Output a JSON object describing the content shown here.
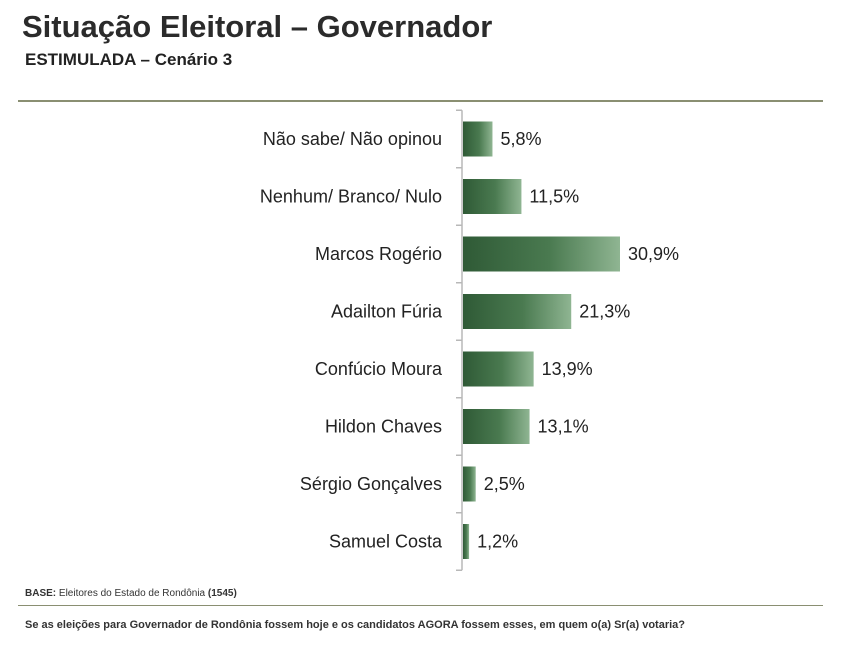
{
  "header": {
    "title": "Situação Eleitoral – Governador",
    "subtitle": "ESTIMULADA – Cenário 3"
  },
  "footer": {
    "base_label": "BASE:",
    "base_text": "Eleitores do Estado de Rondônia",
    "base_count": "(1545)",
    "question": "Se as eleições para Governador de Rondônia fossem hoje e os candidatos AGORA fossem esses, em quem o(a) Sr(a) votaria?"
  },
  "colors": {
    "bar_dark": "#2f5a36",
    "bar_light": "#8fb592",
    "axis": "#b8b8b8"
  },
  "chart_data": {
    "type": "bar",
    "orientation": "horizontal",
    "title": "Situação Eleitoral – Governador",
    "subtitle": "ESTIMULADA – Cenário 3",
    "categories": [
      "Não sabe/ Não opinou",
      "Nenhum/ Branco/ Nulo",
      "Marcos Rogério",
      "Adailton Fúria",
      "Confúcio Moura",
      "Hildon Chaves",
      "Sérgio Gonçalves",
      "Samuel Costa"
    ],
    "values": [
      5.8,
      11.5,
      30.9,
      21.3,
      13.9,
      13.1,
      2.5,
      1.2
    ],
    "labels": [
      "5,8%",
      "11,5%",
      "30,9%",
      "21,3%",
      "13,9%",
      "13,1%",
      "2,5%",
      "1,2%"
    ],
    "xlim": [
      0,
      30.9
    ],
    "unit": "%"
  }
}
